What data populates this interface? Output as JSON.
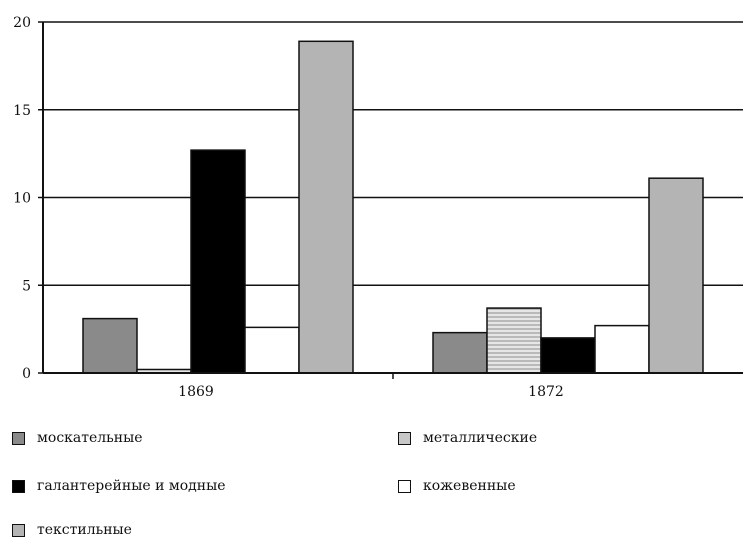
{
  "chart_data": {
    "type": "bar",
    "categories": [
      "1869",
      "1872"
    ],
    "ylim": [
      0,
      20
    ],
    "yticks": [
      "0",
      "5",
      "10",
      "15",
      "20"
    ],
    "grid": true,
    "legend_position": "bottom",
    "series": [
      {
        "name": "москательные",
        "values": [
          3.1,
          2.3
        ],
        "color": "#8a8a8a"
      },
      {
        "name": "металлические",
        "values": [
          0.2,
          3.7
        ],
        "color": "#d9d9d9",
        "pattern": "horizontal-stripes"
      },
      {
        "name": "галантерейные и модные",
        "values": [
          12.7,
          2.0
        ],
        "color": "#000000"
      },
      {
        "name": "кожевенные",
        "values": [
          2.6,
          2.7
        ],
        "color": "#ffffff"
      },
      {
        "name": "текстильные",
        "values": [
          18.9,
          11.1
        ],
        "color": "#b4b4b4"
      }
    ]
  },
  "legend": {
    "mosk": "москательные",
    "met": "металлические",
    "gal": "галантерейные и модные",
    "koz": "кожевенные",
    "tex": "текстильные"
  }
}
